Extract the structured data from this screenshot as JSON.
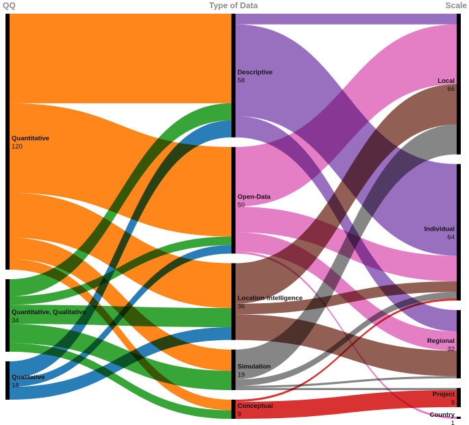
{
  "chart_data": {
    "type": "sankey",
    "axes": [
      "QQ",
      "Type of Data",
      "Scale"
    ],
    "nodes": {
      "QQ": [
        {
          "name": "Quantitative",
          "value": 120
        },
        {
          "name": "Quantitative, Qualitative",
          "value": 34
        },
        {
          "name": "Qualitative",
          "value": 18
        }
      ],
      "Type of Data": [
        {
          "name": "Descriptive",
          "value": 58
        },
        {
          "name": "Open-Data",
          "value": 50
        },
        {
          "name": "Location-Intelligence",
          "value": 36
        },
        {
          "name": "Simulation",
          "value": 19
        },
        {
          "name": "Conceptual",
          "value": 9
        }
      ],
      "Scale": [
        {
          "name": "Local",
          "value": 66
        },
        {
          "name": "Individual",
          "value": 64
        },
        {
          "name": "Regional",
          "value": 32
        },
        {
          "name": "Project",
          "value": 9
        },
        {
          "name": "Country",
          "value": 1
        }
      ]
    },
    "flows_stage1": [
      {
        "source": "Quantitative",
        "target": "Descriptive",
        "value": 42
      },
      {
        "source": "Quantitative",
        "target": "Open-Data",
        "value": 42
      },
      {
        "source": "Quantitative",
        "target": "Location-Intelligence",
        "value": 21
      },
      {
        "source": "Quantitative",
        "target": "Simulation",
        "value": 10
      },
      {
        "source": "Quantitative",
        "target": "Conceptual",
        "value": 5
      },
      {
        "source": "Quantitative, Qualitative",
        "target": "Descriptive",
        "value": 8
      },
      {
        "source": "Quantitative, Qualitative",
        "target": "Open-Data",
        "value": 4
      },
      {
        "source": "Quantitative, Qualitative",
        "target": "Location-Intelligence",
        "value": 9
      },
      {
        "source": "Quantitative, Qualitative",
        "target": "Simulation",
        "value": 9
      },
      {
        "source": "Quantitative, Qualitative",
        "target": "Conceptual",
        "value": 4
      },
      {
        "source": "Qualitative",
        "target": "Descriptive",
        "value": 8
      },
      {
        "source": "Qualitative",
        "target": "Open-Data",
        "value": 4
      },
      {
        "source": "Qualitative",
        "target": "Location-Intelligence",
        "value": 6
      }
    ],
    "flows_stage2": [
      {
        "source": "Descriptive",
        "target": "Local",
        "value": 5
      },
      {
        "source": "Descriptive",
        "target": "Individual",
        "value": 43
      },
      {
        "source": "Descriptive",
        "target": "Regional",
        "value": 10
      },
      {
        "source": "Open-Data",
        "target": "Local",
        "value": 28
      },
      {
        "source": "Open-Data",
        "target": "Individual",
        "value": 12
      },
      {
        "source": "Open-Data",
        "target": "Regional",
        "value": 9
      },
      {
        "source": "Open-Data",
        "target": "Country",
        "value": 1
      },
      {
        "source": "Location-Intelligence",
        "target": "Local",
        "value": 19
      },
      {
        "source": "Location-Intelligence",
        "target": "Individual",
        "value": 5
      },
      {
        "source": "Location-Intelligence",
        "target": "Regional",
        "value": 12
      },
      {
        "source": "Simulation",
        "target": "Local",
        "value": 14
      },
      {
        "source": "Simulation",
        "target": "Individual",
        "value": 3
      },
      {
        "source": "Simulation",
        "target": "Regional",
        "value": 1
      },
      {
        "source": "Simulation",
        "target": "Project",
        "value": 1
      },
      {
        "source": "Conceptual",
        "target": "Individual",
        "value": 1
      },
      {
        "source": "Conceptual",
        "target": "Project",
        "value": 8
      }
    ],
    "colors": {
      "Quantitative": "#ff7f0e",
      "Quantitative, Qualitative": "#2ca02c",
      "Qualitative": "#1f77b4",
      "Descriptive": "#9467bd",
      "Open-Data": "#e377c2",
      "Location-Intelligence": "#8c564b",
      "Simulation": "#7f7f7f",
      "Conceptual": "#d62728"
    },
    "legend": "none",
    "grid": false
  }
}
